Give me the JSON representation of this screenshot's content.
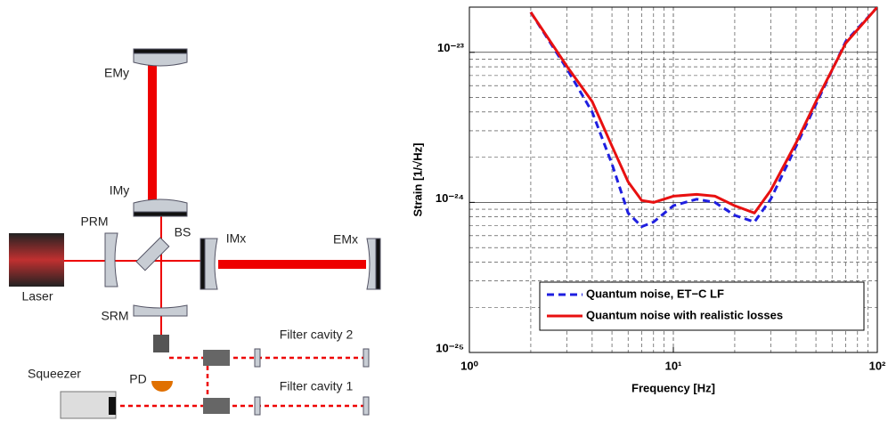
{
  "diagram": {
    "labels": {
      "emy": "EMy",
      "imy": "IMy",
      "prm": "PRM",
      "bs": "BS",
      "imx": "IMx",
      "emx": "EMx",
      "laser": "Laser",
      "srm": "SRM",
      "pd": "PD",
      "squeezer": "Squeezer",
      "fc2": "Filter cavity 2",
      "fc1": "Filter cavity 1"
    }
  },
  "chart_data": {
    "type": "line",
    "xlabel": "Frequency [Hz]",
    "ylabel": "Strain [1/√Hz]",
    "log_x": true,
    "log_y": true,
    "grid": true,
    "legend": "lower right",
    "xlim": [
      1,
      100
    ],
    "ylim": [
      1e-25,
      2e-23
    ],
    "xticks": [
      {
        "value": 1,
        "label": "10⁰"
      },
      {
        "value": 10,
        "label": "10¹"
      },
      {
        "value": 100,
        "label": "10²"
      }
    ],
    "yticks": [
      {
        "value": 1e-25,
        "label": "10⁻²⁵"
      },
      {
        "value": 1e-24,
        "label": "10⁻²⁴"
      },
      {
        "value": 1e-23,
        "label": "10⁻²³"
      }
    ],
    "x": [
      2,
      3,
      4,
      5,
      6,
      7,
      8,
      10,
      13,
      16,
      20,
      25,
      30,
      40,
      50,
      70,
      100
    ],
    "series": [
      {
        "name": "Quantum noise, ET−C LF",
        "color": "#1f1fe0",
        "line_style": "dashed",
        "values": [
          1.85e-23,
          7.8e-24,
          4e-24,
          1.8e-24,
          8.5e-25,
          6.9e-25,
          7.4e-25,
          9.5e-25,
          1.05e-24,
          1e-24,
          8.2e-25,
          7.4e-25,
          1.05e-24,
          2.37e-24,
          4.5e-24,
          1.18e-23,
          2e-23
        ]
      },
      {
        "name": "Quantum noise with realistic losses",
        "color": "#e81010",
        "line_style": "solid",
        "values": [
          1.85e-23,
          8.1e-24,
          4.7e-24,
          2.37e-24,
          1.37e-24,
          1.03e-24,
          1e-24,
          1.1e-24,
          1.13e-24,
          1.1e-24,
          9.5e-25,
          8.5e-25,
          1.2e-24,
          2.5e-24,
          4.7e-24,
          1.15e-23,
          2e-23
        ]
      }
    ]
  }
}
